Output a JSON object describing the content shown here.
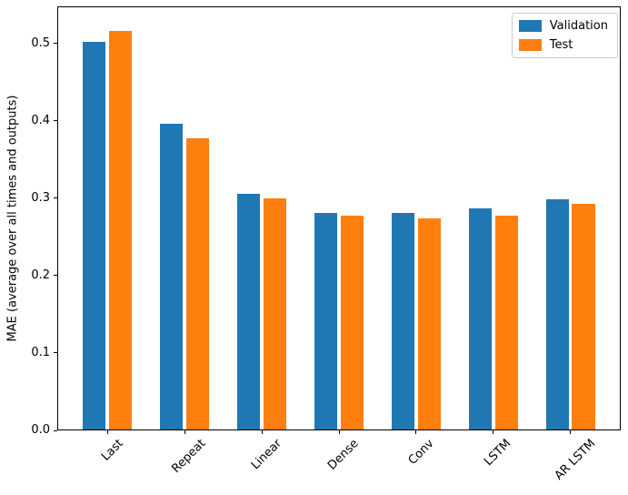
{
  "figure": {
    "background": "#ffffff",
    "axis_color": "#000000"
  },
  "chart_data": {
    "type": "bar",
    "title": "",
    "xlabel": "",
    "ylabel": "MAE (average over all times and outputs)",
    "categories": [
      "Last",
      "Repeat",
      "Linear",
      "Dense",
      "Conv",
      "LSTM",
      "AR LSTM"
    ],
    "series": [
      {
        "name": "Validation",
        "color": "#1f77b4",
        "values": [
          0.502,
          0.396,
          0.306,
          0.281,
          0.281,
          0.287,
          0.299
        ]
      },
      {
        "name": "Test",
        "color": "#ff7f0e",
        "values": [
          0.516,
          0.377,
          0.3,
          0.277,
          0.274,
          0.277,
          0.293
        ]
      }
    ],
    "yticks": [
      0.0,
      0.1,
      0.2,
      0.3,
      0.4,
      0.5
    ],
    "ytick_labels": [
      "0.0",
      "0.1",
      "0.2",
      "0.3",
      "0.4",
      "0.5"
    ],
    "ylim": [
      0,
      0.548
    ],
    "xlim": [
      -0.65,
      6.65
    ],
    "bar_width": 0.3,
    "bar_offsets": [
      -0.17,
      0.17
    ],
    "xtick_rotation": 45,
    "grid": false,
    "legend": {
      "position": "upper right",
      "entries": [
        "Validation",
        "Test"
      ]
    }
  }
}
